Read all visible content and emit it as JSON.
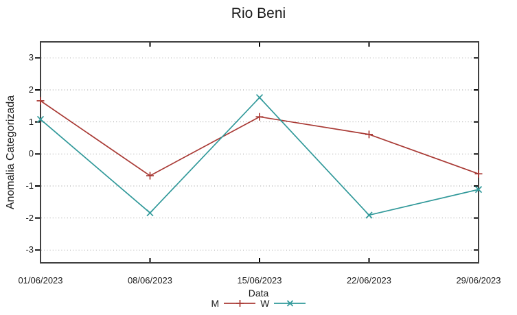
{
  "title": "Rio Beni",
  "colors": {
    "series_m": "#a93a35",
    "series_w": "#31999a",
    "grid": "#999999",
    "border": "#404040",
    "tick": "#000000",
    "text": "#1a1a1a",
    "background": "#ffffff"
  },
  "chart_data": {
    "type": "line",
    "title": "Rio Beni",
    "xlabel": "Data",
    "ylabel": "Anomalia Categorizada",
    "categories": [
      "01/06/2023",
      "08/06/2023",
      "15/06/2023",
      "22/06/2023",
      "29/06/2023"
    ],
    "y_ticks": [
      3,
      2,
      1,
      0,
      -1,
      -2,
      -3
    ],
    "ylim": [
      -3.4,
      3.5
    ],
    "grid": "horizontal-dotted",
    "legend_position": "below-x-label",
    "series": [
      {
        "name": "M",
        "marker": "plus",
        "color": "#a93a35",
        "values": [
          1.66,
          -0.68,
          1.16,
          0.61,
          -0.62
        ]
      },
      {
        "name": "W",
        "marker": "cross",
        "color": "#31999a",
        "values": [
          1.08,
          -1.84,
          1.76,
          -1.91,
          -1.11
        ]
      }
    ]
  }
}
